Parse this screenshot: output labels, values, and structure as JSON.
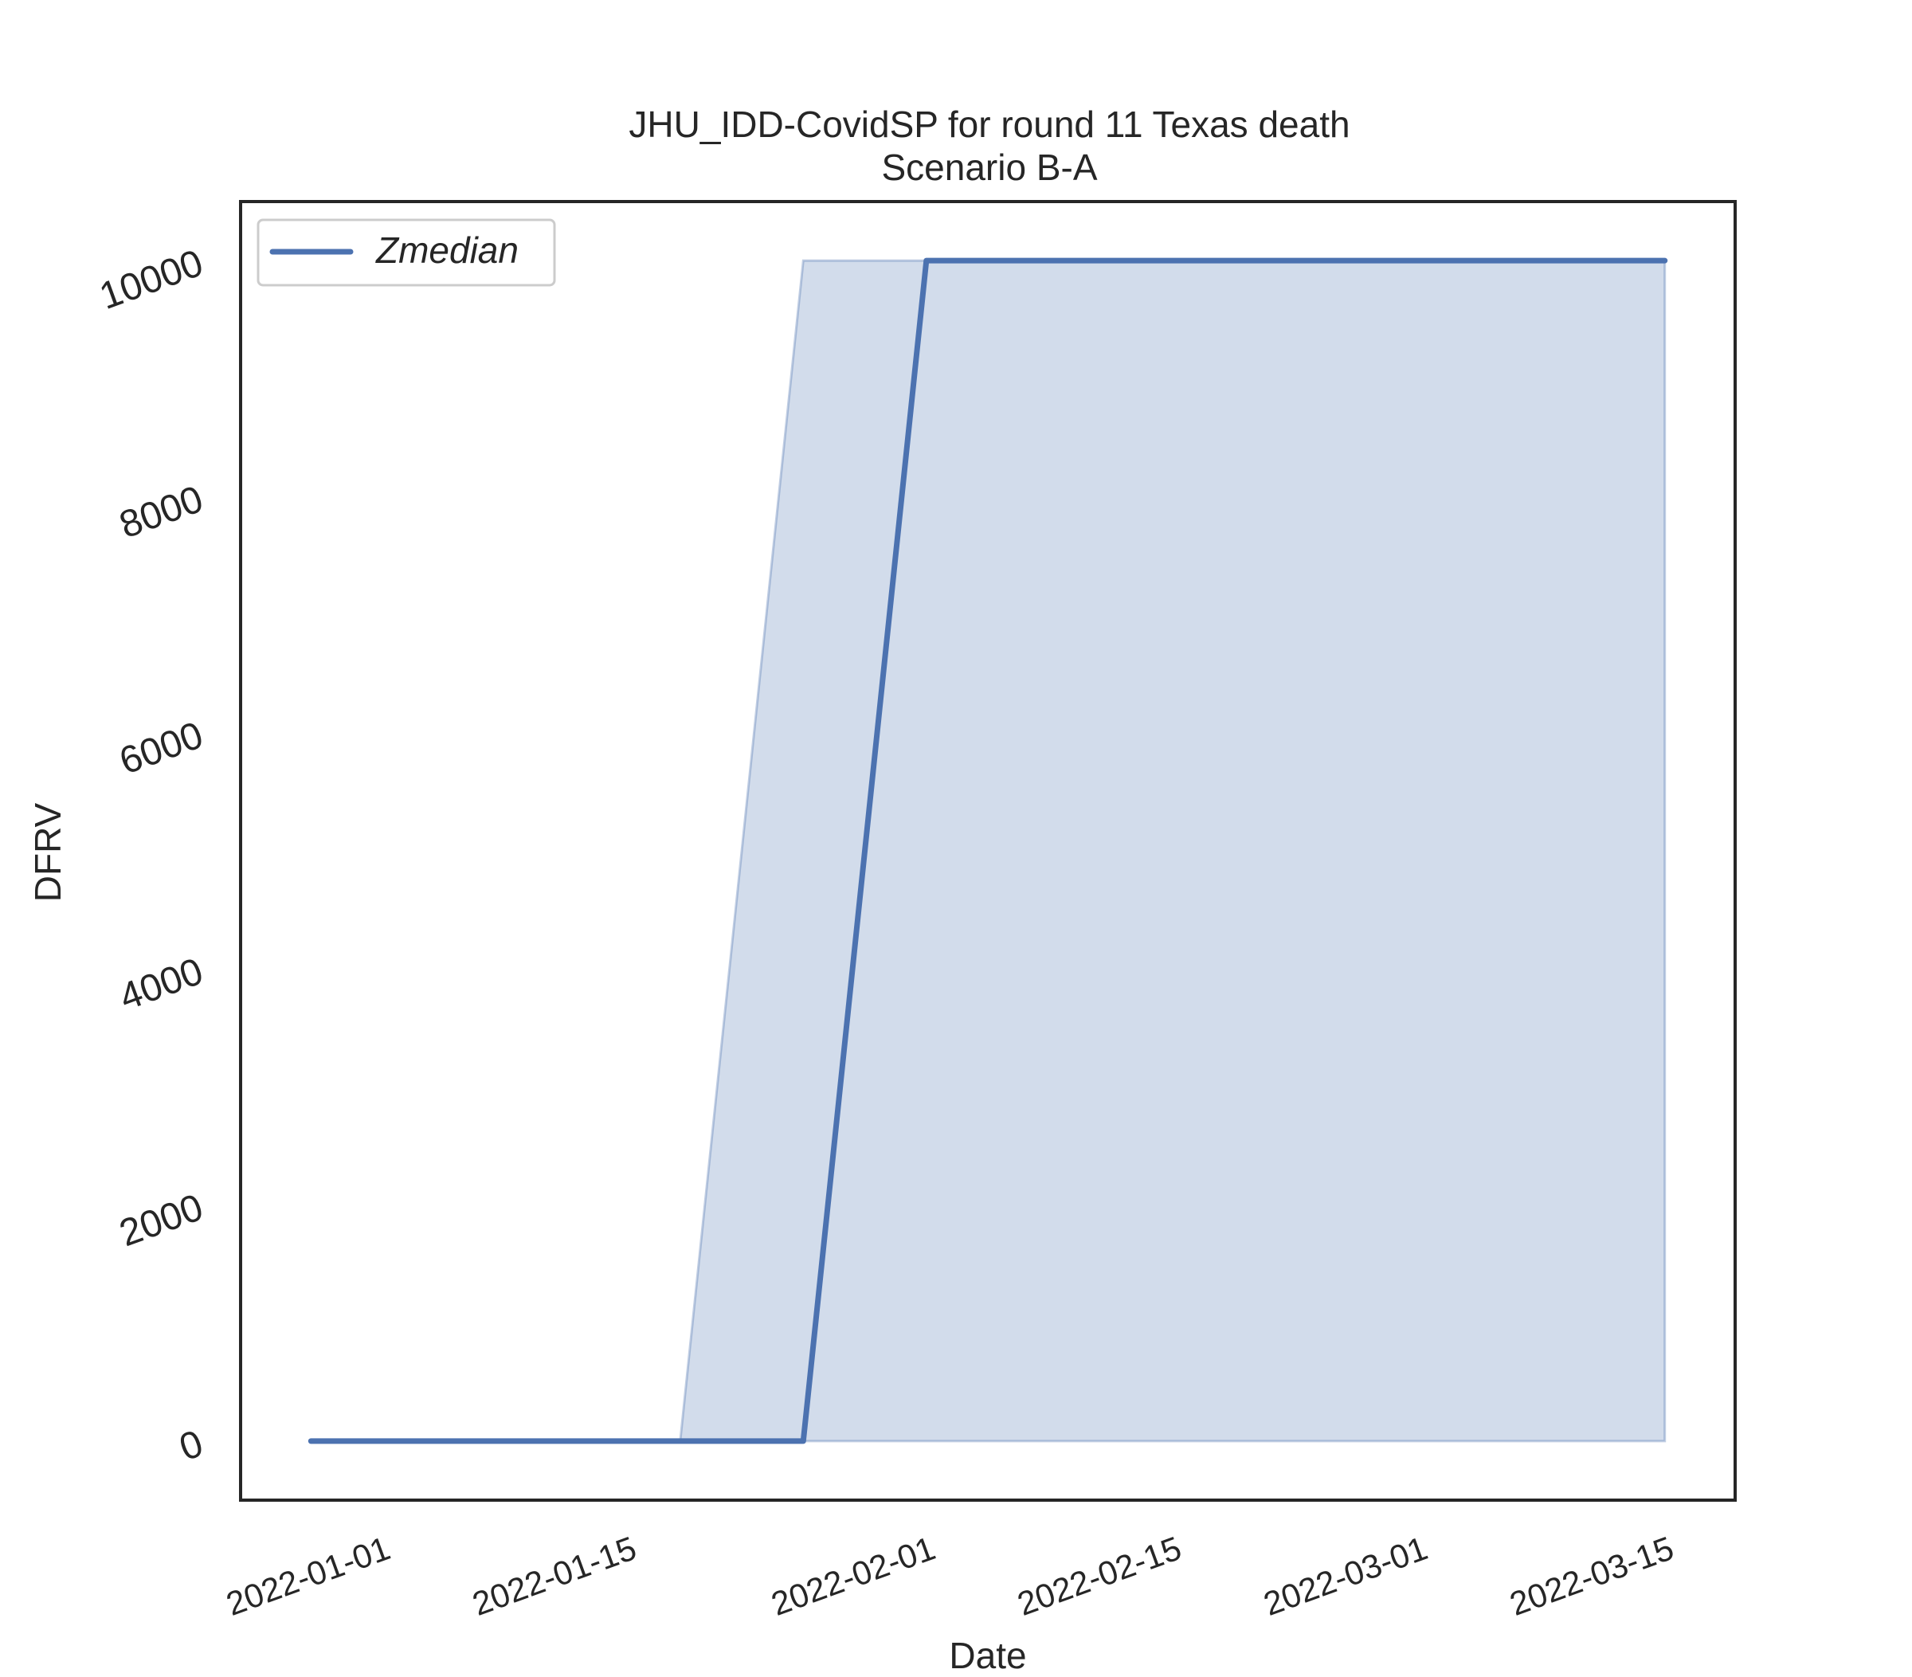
{
  "chart_data": {
    "type": "line",
    "title": "JHU_IDD-CovidSP for round 11 Texas death",
    "subtitle": "Scenario B-A",
    "xlabel": "Date",
    "ylabel": "DFRV",
    "x_ticks": [
      "2022-01-01",
      "2022-01-15",
      "2022-02-01",
      "2022-02-15",
      "2022-03-01",
      "2022-03-15"
    ],
    "y_ticks": [
      0,
      2000,
      4000,
      6000,
      8000,
      10000
    ],
    "xlim": [
      "2021-12-24",
      "2022-03-19"
    ],
    "ylim": [
      -500,
      10500
    ],
    "grid": false,
    "legend_placement": "top-left",
    "series": [
      {
        "name": "Zmedian",
        "color": "#4c72b0",
        "x": [
          "2021-12-28",
          "2022-01-04",
          "2022-01-11",
          "2022-01-18",
          "2022-01-25",
          "2022-02-01",
          "2022-02-08",
          "2022-02-15",
          "2022-02-22",
          "2022-03-01",
          "2022-03-08",
          "2022-03-15"
        ],
        "values": [
          0,
          0,
          0,
          0,
          0,
          10000,
          10000,
          10000,
          10000,
          10000,
          10000,
          10000
        ]
      }
    ],
    "band": {
      "color": "#4c72b0",
      "opacity": 0.25,
      "x": [
        "2021-12-28",
        "2022-01-04",
        "2022-01-11",
        "2022-01-18",
        "2022-01-25",
        "2022-02-01",
        "2022-02-08",
        "2022-02-15",
        "2022-02-22",
        "2022-03-01",
        "2022-03-08",
        "2022-03-15"
      ],
      "lower": [
        0,
        0,
        0,
        0,
        0,
        0,
        0,
        0,
        0,
        0,
        0,
        0
      ],
      "upper": [
        0,
        0,
        0,
        0,
        10000,
        10000,
        10000,
        10000,
        10000,
        10000,
        10000,
        10000
      ]
    }
  }
}
